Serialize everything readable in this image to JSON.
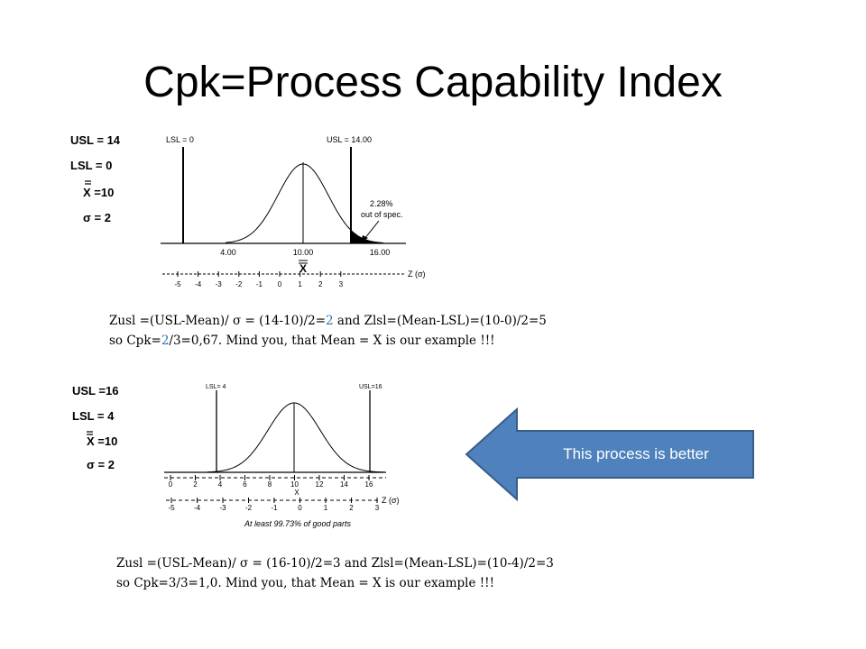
{
  "slide": {
    "title": "Cpk=Process Capability Index",
    "callout": "This process is better",
    "colors": {
      "arrow_fill": "#4f81bd",
      "arrow_stroke": "#385d8a",
      "highlight": "#2e75b6"
    }
  },
  "chart1": {
    "params": {
      "usl": "USL = 14",
      "lsl": "LSL = 0",
      "xbar": "X =10",
      "sigma": "σ = 2"
    },
    "lsl_label": "LSL = 0",
    "usl_label": "USL = 14.00",
    "oos_line1": "2.28%",
    "oos_line2": "out of spec.",
    "value_labels": [
      "4.00",
      "10.00",
      "16.00"
    ],
    "axis_symbol": "X",
    "z_label": "Z (σ)",
    "z_ticks": [
      "-5",
      "-4",
      "-3",
      "-2",
      "-1",
      "0",
      "1",
      "2",
      "3"
    ],
    "caption_line1": {
      "a": "Zusl =(USL-Mean)/ σ = (14-10)/2=",
      "hl": "2",
      "b": " and Zlsl=(Mean-LSL)=(10-0)/2=5"
    },
    "caption_line2": {
      "a": "so Cpk=",
      "hl": "2",
      "b": "/3=0,67. Mind you, that Mean = X is our example !!!"
    }
  },
  "chart2": {
    "params": {
      "usl": "USL =16",
      "lsl": "LSL = 4",
      "xbar": "X =10",
      "sigma": "σ = 2"
    },
    "lsl_label": "LSL= 4",
    "usl_label": "USL=16",
    "x_ticks": [
      "0",
      "2",
      "4",
      "6",
      "8",
      "10",
      "12",
      "14",
      "16"
    ],
    "x_symbol": "X",
    "z_label": "Z (σ)",
    "z_ticks": [
      "-5",
      "-4",
      "-3",
      "-2",
      "-1",
      "0",
      "1",
      "2",
      "3"
    ],
    "footer": "At least 99.73% of good parts",
    "caption_line1": "Zusl =(USL-Mean)/ σ = (16-10)/2=3 and Zlsl=(Mean-LSL)=(10-4)/2=3",
    "caption_line2": "so Cpk=3/3=1,0. Mind you, that Mean = X is our example !!!"
  }
}
